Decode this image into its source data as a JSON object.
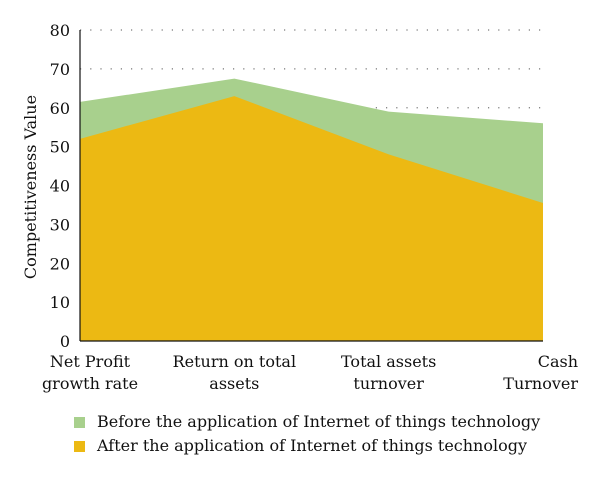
{
  "chart_data": {
    "type": "area",
    "categories": [
      [
        "Net Profit",
        "growth rate"
      ],
      [
        "Return on total",
        "assets"
      ],
      [
        "Total assets",
        "turnover"
      ],
      [
        "Cash",
        "Turnover"
      ]
    ],
    "ylabel": "Competitiveness Value",
    "ylim": [
      0,
      80
    ],
    "yticks": [
      0,
      10,
      20,
      30,
      40,
      50,
      60,
      70,
      80
    ],
    "grid": "dotted horizontal",
    "legend_position": "bottom",
    "series": [
      {
        "name": "Before the application of Internet of things technology",
        "values": [
          61.5,
          67.5,
          59,
          56
        ],
        "color": "#a8d08d"
      },
      {
        "name": "After the application of Internet of things technology",
        "values": [
          52,
          63,
          48,
          35.5
        ],
        "color": "#ecb913"
      }
    ]
  }
}
